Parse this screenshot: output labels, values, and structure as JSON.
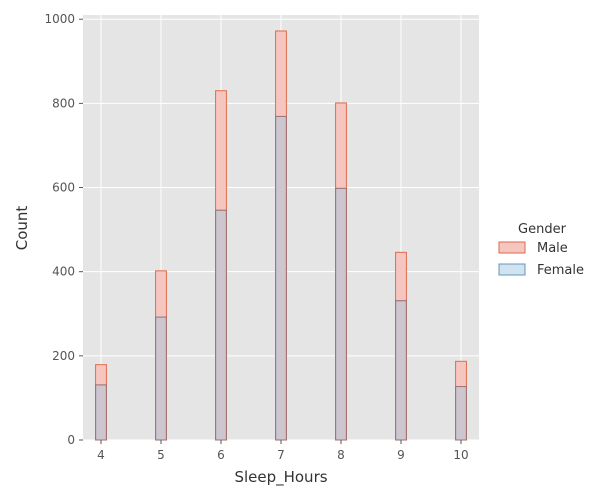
{
  "chart_data": {
    "type": "bar",
    "title": "",
    "xlabel": "Sleep_Hours",
    "ylabel": "Count",
    "xlim": [
      3.7,
      10.3
    ],
    "ylim": [
      0,
      1010
    ],
    "grid": true,
    "x_ticks": [
      "4",
      "5",
      "6",
      "7",
      "8",
      "9",
      "10"
    ],
    "y_ticks": [
      "0",
      "200",
      "400",
      "600",
      "800",
      "1000"
    ],
    "categories": [
      4,
      5,
      6,
      7,
      8,
      9,
      10
    ],
    "series": [
      {
        "name": "Male",
        "color": "#f5c6c0",
        "edge": "#e06a4a",
        "values": [
          179,
          402,
          830,
          972,
          801,
          446,
          187
        ]
      },
      {
        "name": "Female",
        "color": "#9ec6e2",
        "edge": "#4a7fb0",
        "values": [
          131,
          292,
          546,
          769,
          598,
          331,
          127
        ]
      }
    ],
    "legend": {
      "title": "Gender",
      "position": "right"
    }
  }
}
